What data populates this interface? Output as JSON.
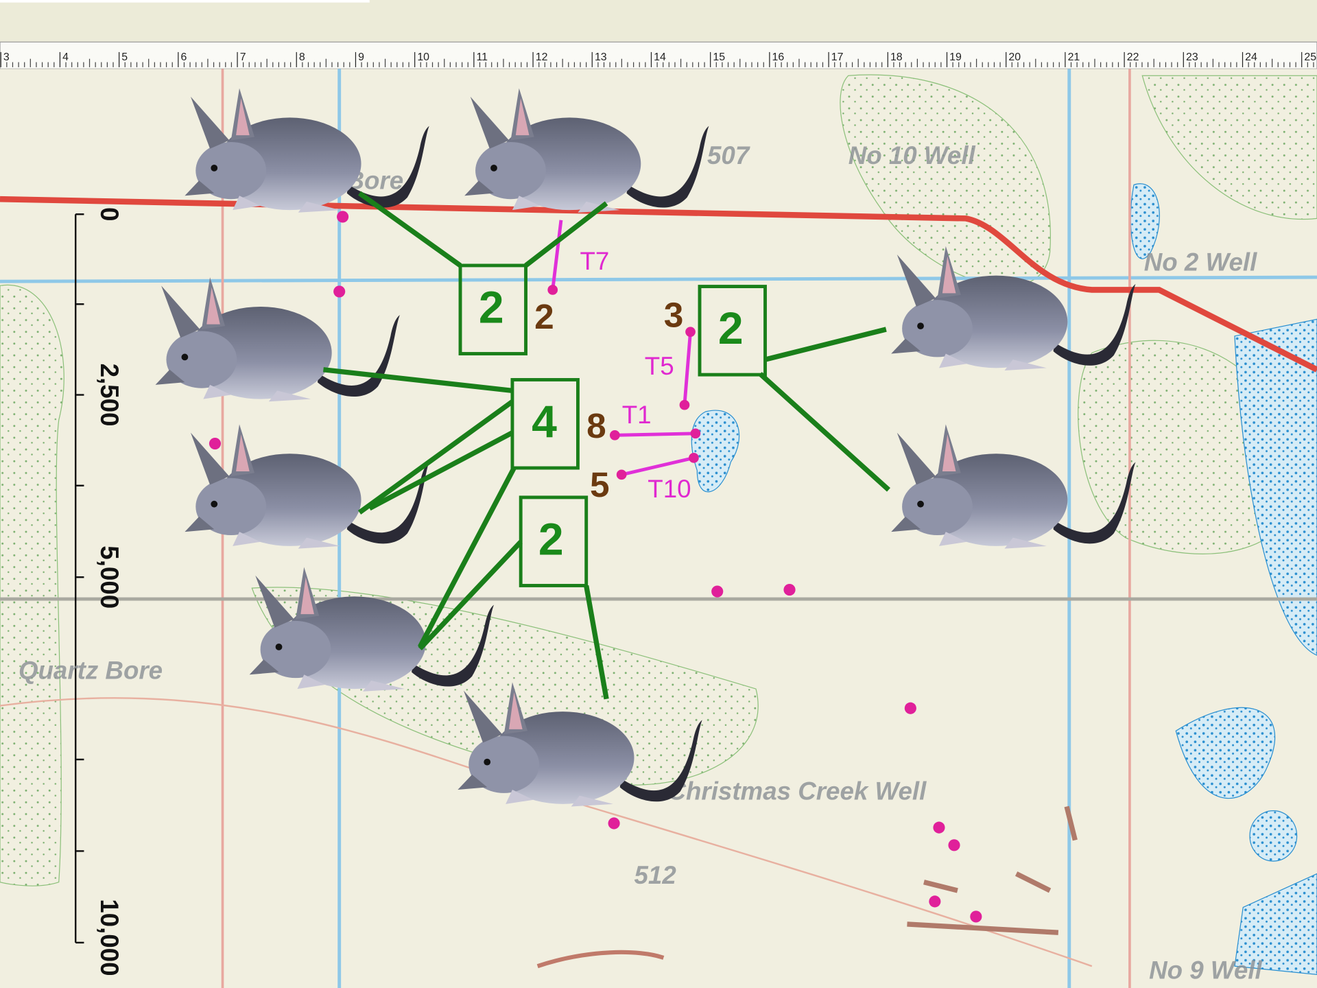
{
  "ruler": {
    "labels": [
      "3",
      "4",
      "5",
      "6",
      "7",
      "8",
      "9",
      "10",
      "11",
      "12",
      "13",
      "14",
      "15",
      "16",
      "17",
      "18",
      "19",
      "20",
      "21",
      "22",
      "23",
      "24",
      "25"
    ]
  },
  "scale_bar": {
    "labels": [
      "0",
      "2,500",
      "5,000",
      "10,000"
    ]
  },
  "map": {
    "labels": [
      "507",
      "No 10 Well",
      "No 2 Well",
      "Bore",
      "Quartz Bore",
      "Christmas Creek Well",
      "512",
      "No 9 Well"
    ]
  },
  "groups": {
    "labels": [
      "2",
      "2",
      "4",
      "2"
    ]
  },
  "counts": [
    "2",
    "3",
    "8",
    "5"
  ],
  "transects": [
    "T7",
    "T5",
    "T1",
    "T10"
  ]
}
